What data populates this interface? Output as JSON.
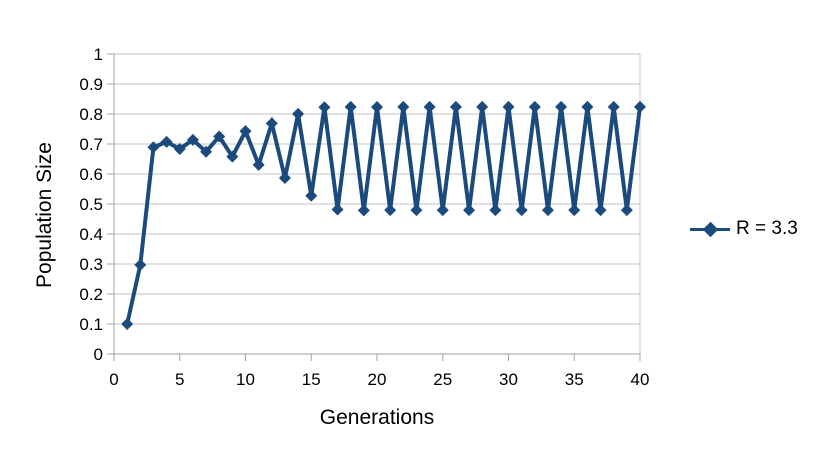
{
  "chart_data": {
    "type": "line",
    "title": "",
    "xlabel": "Generations",
    "ylabel": "Population Size",
    "xlim": [
      0,
      40
    ],
    "ylim": [
      0,
      1
    ],
    "grid": "horizontal",
    "legend_position": "right",
    "xtick_values": [
      0,
      5,
      10,
      15,
      20,
      25,
      30,
      35,
      40
    ],
    "xtick_labels": [
      "0",
      "5",
      "10",
      "15",
      "20",
      "25",
      "30",
      "35",
      "40"
    ],
    "ytick_values": [
      0,
      0.1,
      0.2,
      0.3,
      0.4,
      0.5,
      0.6,
      0.7,
      0.8,
      0.9,
      1
    ],
    "ytick_labels": [
      "0",
      "0.1",
      "0.2",
      "0.3",
      "0.4",
      "0.5",
      "0.6",
      "0.7",
      "0.8",
      "0.9",
      "1"
    ],
    "colors": {
      "series": "#1B4A7D",
      "gridline": "#C3C3C3",
      "axis": "#A3A3A3",
      "text": "#000000",
      "background": "#FFFFFF"
    },
    "series": [
      {
        "name": "R = 3.3",
        "marker": "diamond",
        "color": "#1B4A7D",
        "x": [
          1,
          2,
          3,
          4,
          5,
          6,
          7,
          8,
          9,
          10,
          11,
          12,
          13,
          14,
          15,
          16,
          17,
          18,
          19,
          20,
          21,
          22,
          23,
          24,
          25,
          26,
          27,
          28,
          29,
          30,
          31,
          32,
          33,
          34,
          35,
          36,
          37,
          38,
          39,
          40
        ],
        "values": [
          0.1,
          0.297,
          0.689,
          0.7071,
          0.6835,
          0.7139,
          0.674,
          0.7251,
          0.6578,
          0.7428,
          0.6305,
          0.7688,
          0.5866,
          0.8003,
          0.5274,
          0.8225,
          0.4818,
          0.8239,
          0.4788,
          0.8235,
          0.4796,
          0.8236,
          0.4794,
          0.8236,
          0.4794,
          0.8236,
          0.4794,
          0.8236,
          0.4794,
          0.8236,
          0.4794,
          0.8236,
          0.4794,
          0.8236,
          0.4794,
          0.8236,
          0.4794,
          0.8236,
          0.4794,
          0.8236
        ]
      }
    ]
  }
}
